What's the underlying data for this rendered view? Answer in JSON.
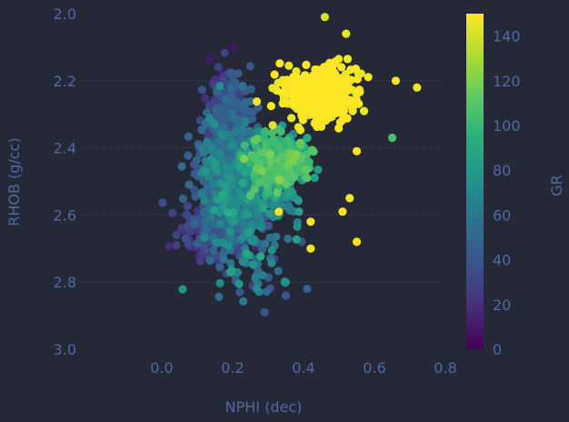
{
  "chart_data": {
    "type": "scatter",
    "title": "",
    "xlabel": "NPHI (dec)",
    "ylabel": "RHOB (g/cc)",
    "colorbar_label": "GR",
    "xlim": [
      -0.2,
      0.8
    ],
    "ylim": [
      3.0,
      2.0
    ],
    "y_inverted": true,
    "xticks": [
      "0.0",
      "0.2",
      "0.4",
      "0.6",
      "0.8"
    ],
    "yticks": [
      "2.0",
      "2.2",
      "2.4",
      "2.6",
      "2.8",
      "3.0"
    ],
    "colorbar_ticks": [
      "0",
      "20",
      "40",
      "60",
      "80",
      "100",
      "120",
      "140"
    ],
    "colorbar_range": [
      0,
      150
    ],
    "colormap": "viridis",
    "grid": "horizontal-dashed",
    "background": "#252836",
    "clusters": [
      {
        "cx": 0.2,
        "cy": 2.5,
        "sx": 0.05,
        "sy": 0.1,
        "n": 700,
        "gr_mean": 50,
        "gr_sd": 13
      },
      {
        "cx": 0.19,
        "cy": 2.3,
        "sx": 0.03,
        "sy": 0.07,
        "n": 220,
        "gr_mean": 30,
        "gr_sd": 9
      },
      {
        "cx": 0.16,
        "cy": 2.63,
        "sx": 0.05,
        "sy": 0.05,
        "n": 220,
        "gr_mean": 28,
        "gr_sd": 9
      },
      {
        "cx": 0.33,
        "cy": 2.44,
        "sx": 0.04,
        "sy": 0.04,
        "n": 320,
        "gr_mean": 95,
        "gr_sd": 12
      },
      {
        "cx": 0.27,
        "cy": 2.55,
        "sx": 0.06,
        "sy": 0.06,
        "n": 140,
        "gr_mean": 70,
        "gr_sd": 15
      },
      {
        "cx": 0.44,
        "cy": 2.24,
        "sx": 0.05,
        "sy": 0.04,
        "n": 420,
        "gr_mean": 148,
        "gr_sd": 3
      },
      {
        "cx": 0.26,
        "cy": 2.76,
        "sx": 0.06,
        "sy": 0.05,
        "n": 45,
        "gr_mean": 58,
        "gr_sd": 15
      }
    ],
    "outliers": [
      {
        "x": 0.46,
        "y": 2.01,
        "gr": 140
      },
      {
        "x": 0.52,
        "y": 2.06,
        "gr": 145
      },
      {
        "x": 0.72,
        "y": 2.22,
        "gr": 148
      },
      {
        "x": 0.66,
        "y": 2.2,
        "gr": 148
      },
      {
        "x": 0.65,
        "y": 2.37,
        "gr": 105
      },
      {
        "x": 0.55,
        "y": 2.41,
        "gr": 148
      },
      {
        "x": 0.53,
        "y": 2.55,
        "gr": 148
      },
      {
        "x": 0.51,
        "y": 2.59,
        "gr": 148
      },
      {
        "x": 0.42,
        "y": 2.62,
        "gr": 148
      },
      {
        "x": 0.55,
        "y": 2.68,
        "gr": 148
      },
      {
        "x": 0.42,
        "y": 2.7,
        "gr": 148
      },
      {
        "x": 0.33,
        "y": 2.59,
        "gr": 148
      },
      {
        "x": 0.29,
        "y": 2.89,
        "gr": 40
      },
      {
        "x": 0.35,
        "y": 2.84,
        "gr": 40
      },
      {
        "x": 0.41,
        "y": 2.82,
        "gr": 45
      },
      {
        "x": 0.22,
        "y": 2.83,
        "gr": 40
      }
    ]
  }
}
